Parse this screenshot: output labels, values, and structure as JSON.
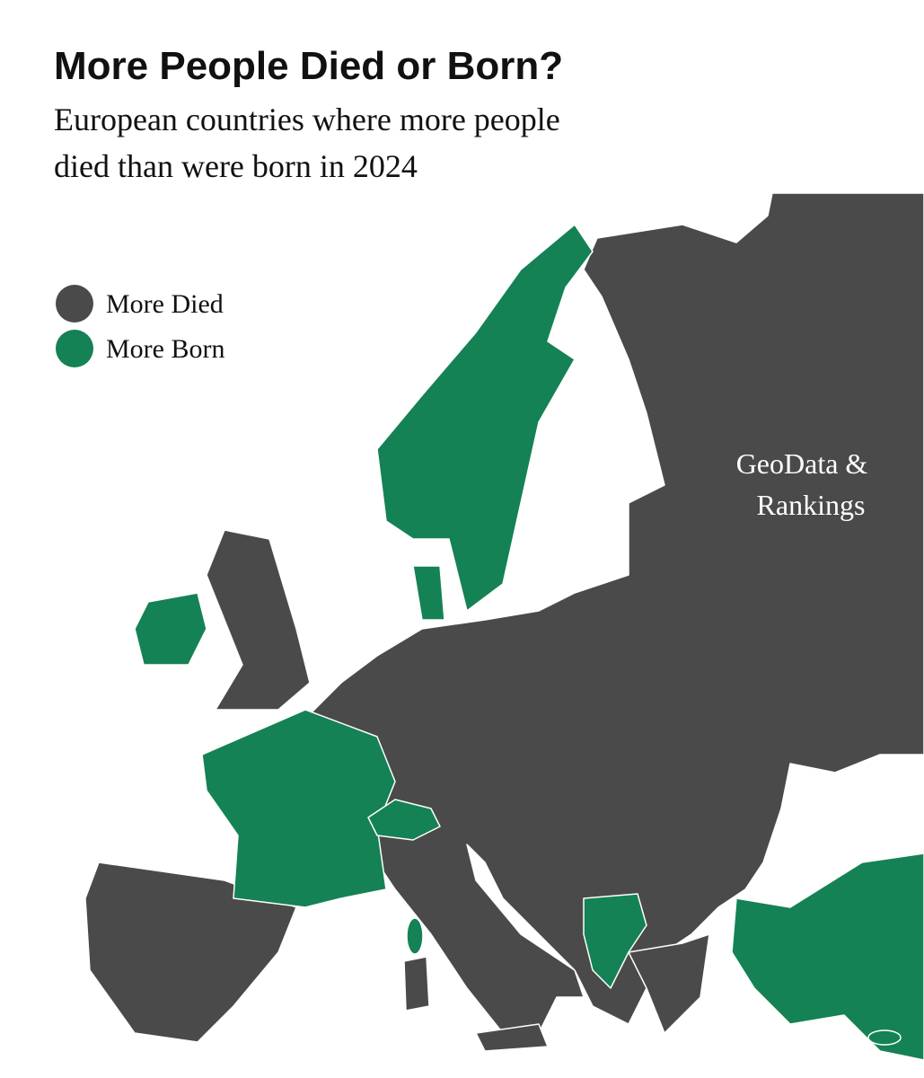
{
  "header": {
    "title": "More People Died or Born?",
    "subtitle": [
      "European countries where more people",
      "died than were born in 2024"
    ]
  },
  "legend": {
    "items": [
      {
        "label": "More Died",
        "color": "#4a4a4a"
      },
      {
        "label": "More Born",
        "color": "#148254"
      }
    ]
  },
  "watermark": [
    "GeoData &",
    "Rankings"
  ]
}
